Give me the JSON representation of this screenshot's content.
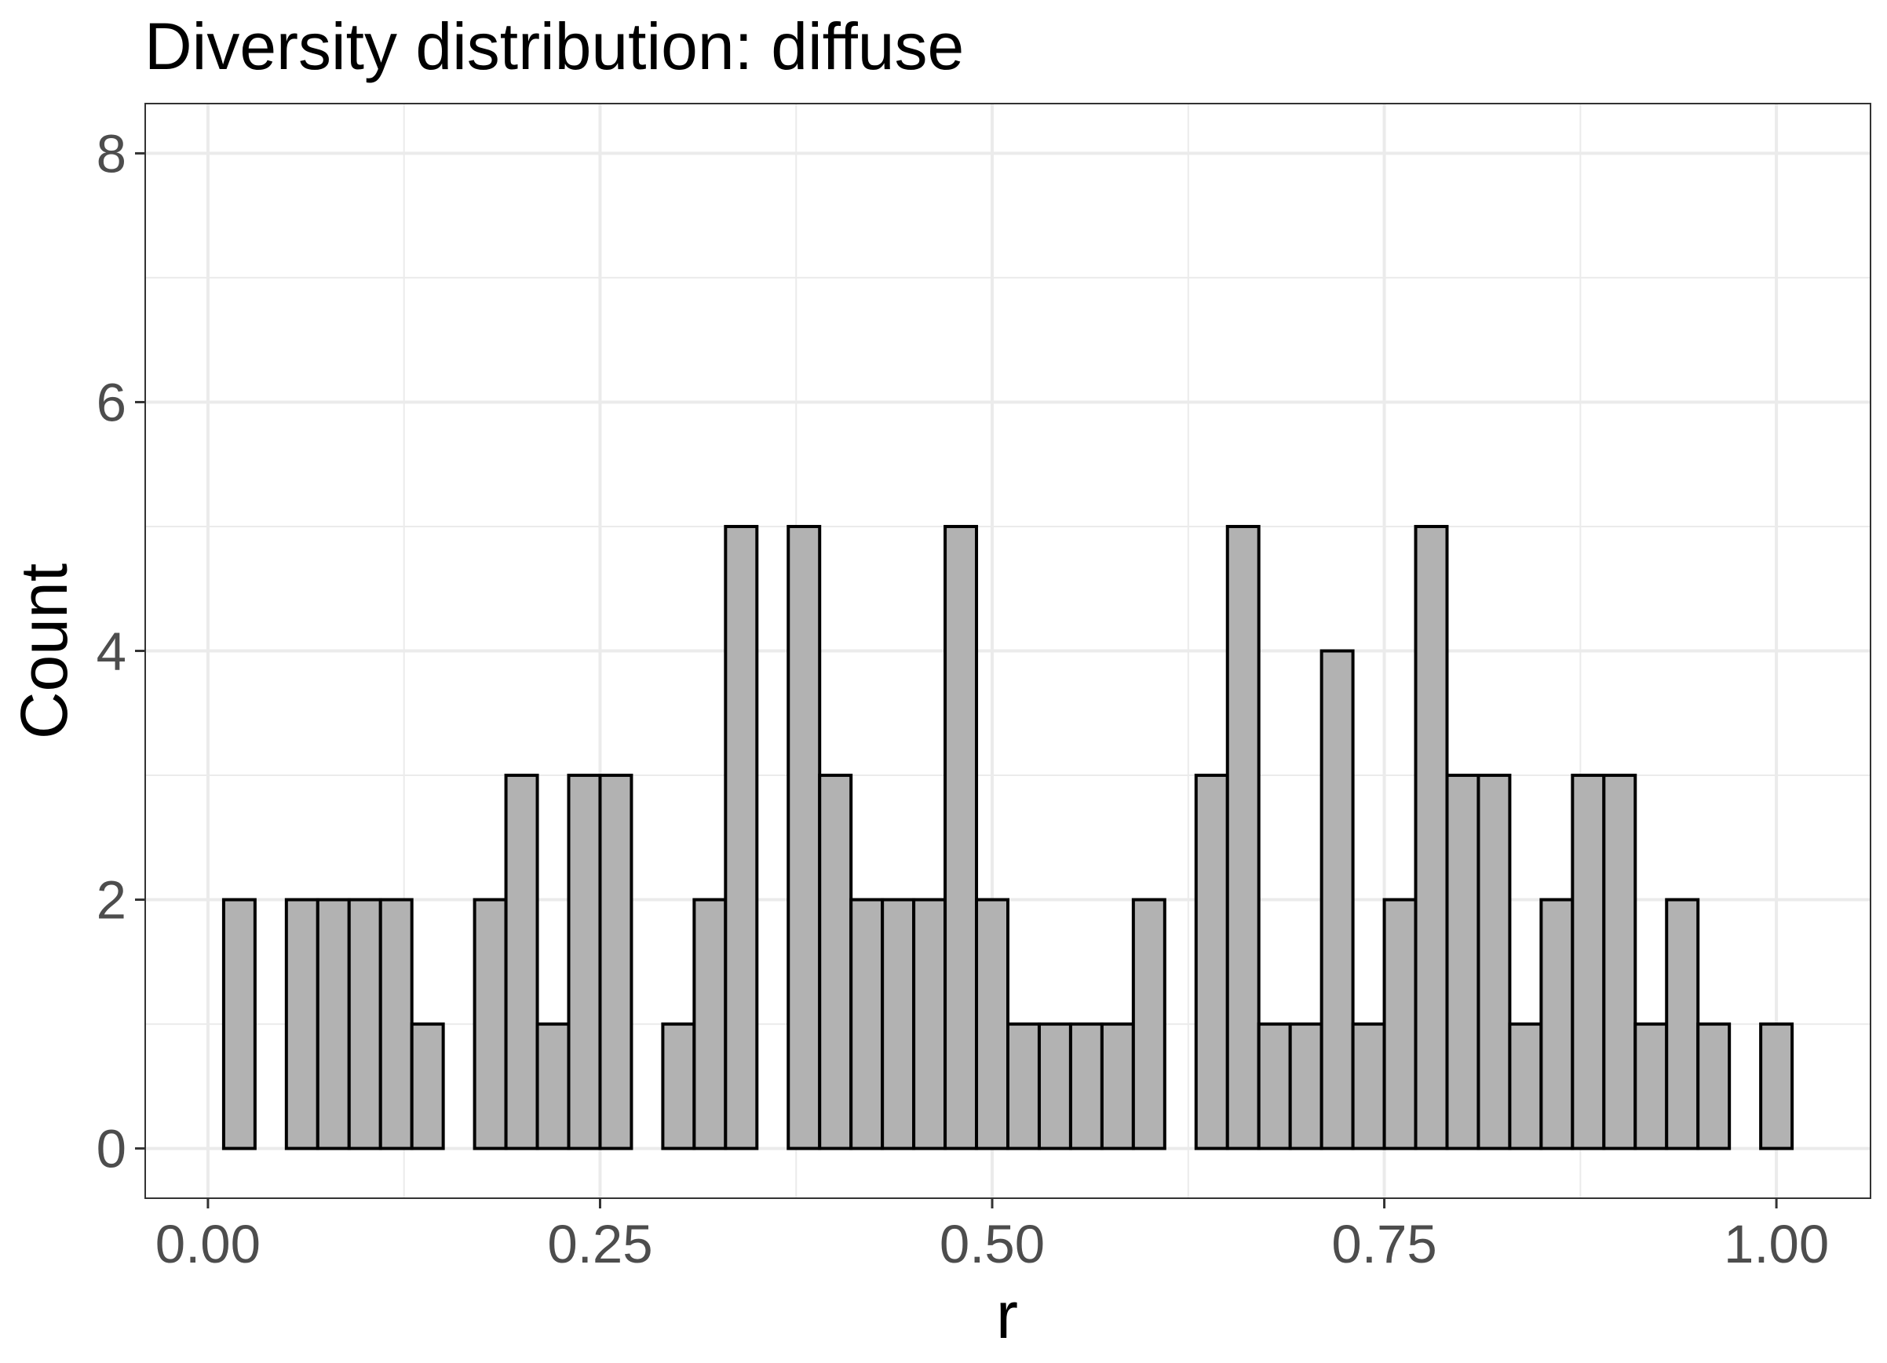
{
  "chart_data": {
    "type": "bar",
    "title": "Diversity distribution: diffuse",
    "xlabel": "r",
    "ylabel": "Count",
    "xlim": [
      -0.04,
      1.06
    ],
    "ylim": [
      -0.4,
      8.4
    ],
    "x_ticks": [
      {
        "value": 0.0,
        "label": "0.00"
      },
      {
        "value": 0.25,
        "label": "0.25"
      },
      {
        "value": 0.5,
        "label": "0.50"
      },
      {
        "value": 0.75,
        "label": "0.75"
      },
      {
        "value": 1.0,
        "label": "1.00"
      }
    ],
    "y_ticks": [
      {
        "value": 0,
        "label": "0"
      },
      {
        "value": 2,
        "label": "2"
      },
      {
        "value": 4,
        "label": "4"
      },
      {
        "value": 6,
        "label": "6"
      },
      {
        "value": 8,
        "label": "8"
      }
    ],
    "grid": true,
    "bin_start": 0.01,
    "bin_width": 0.02,
    "counts": [
      2,
      0,
      2,
      2,
      2,
      2,
      1,
      0,
      2,
      3,
      1,
      3,
      3,
      0,
      1,
      2,
      5,
      0,
      5,
      3,
      2,
      2,
      2,
      5,
      2,
      1,
      1,
      1,
      1,
      2,
      0,
      3,
      5,
      1,
      1,
      4,
      1,
      2,
      5,
      3,
      3,
      1,
      2,
      3,
      3,
      1,
      2,
      1,
      0,
      1
    ],
    "fill_color": "#b2b2b2",
    "edge_color": "#000000"
  }
}
